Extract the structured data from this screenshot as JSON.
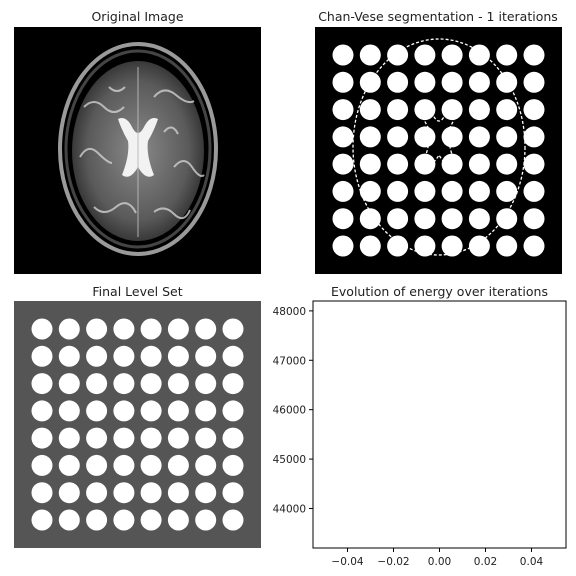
{
  "panels": {
    "original": {
      "title": "Original Image"
    },
    "segmentation": {
      "title": "Chan-Vese segmentation - 1 iterations"
    },
    "level_set": {
      "title": "Final Level Set"
    },
    "energy": {
      "title": "Evolution of energy over iterations"
    }
  },
  "colors": {
    "background": "#000000",
    "level_set_background": "#555555",
    "foreground": "#ffffff",
    "axis": "#000000"
  },
  "chart_data": [
    {
      "type": "heatmap",
      "title": "Chan-Vese segmentation - 1 iterations",
      "grid": {
        "rows": 8,
        "cols": 8
      },
      "description_values": "binary mask of circular blobs"
    },
    {
      "type": "heatmap",
      "title": "Final Level Set",
      "grid": {
        "rows": 8,
        "cols": 8
      }
    },
    {
      "type": "line",
      "title": "Evolution of energy over iterations",
      "xlabel": "",
      "ylabel": "",
      "x": [],
      "y": [],
      "xlim": [
        -0.055,
        0.055
      ],
      "ylim": [
        43200,
        48200
      ],
      "xticks": [
        "−0.04",
        "−0.02",
        "0.00",
        "0.02",
        "0.04"
      ],
      "xtick_values": [
        -0.04,
        -0.02,
        0.0,
        0.02,
        0.04
      ],
      "yticks": [
        "44000",
        "45000",
        "46000",
        "47000",
        "48000"
      ],
      "ytick_values": [
        44000,
        45000,
        46000,
        47000,
        48000
      ]
    }
  ]
}
